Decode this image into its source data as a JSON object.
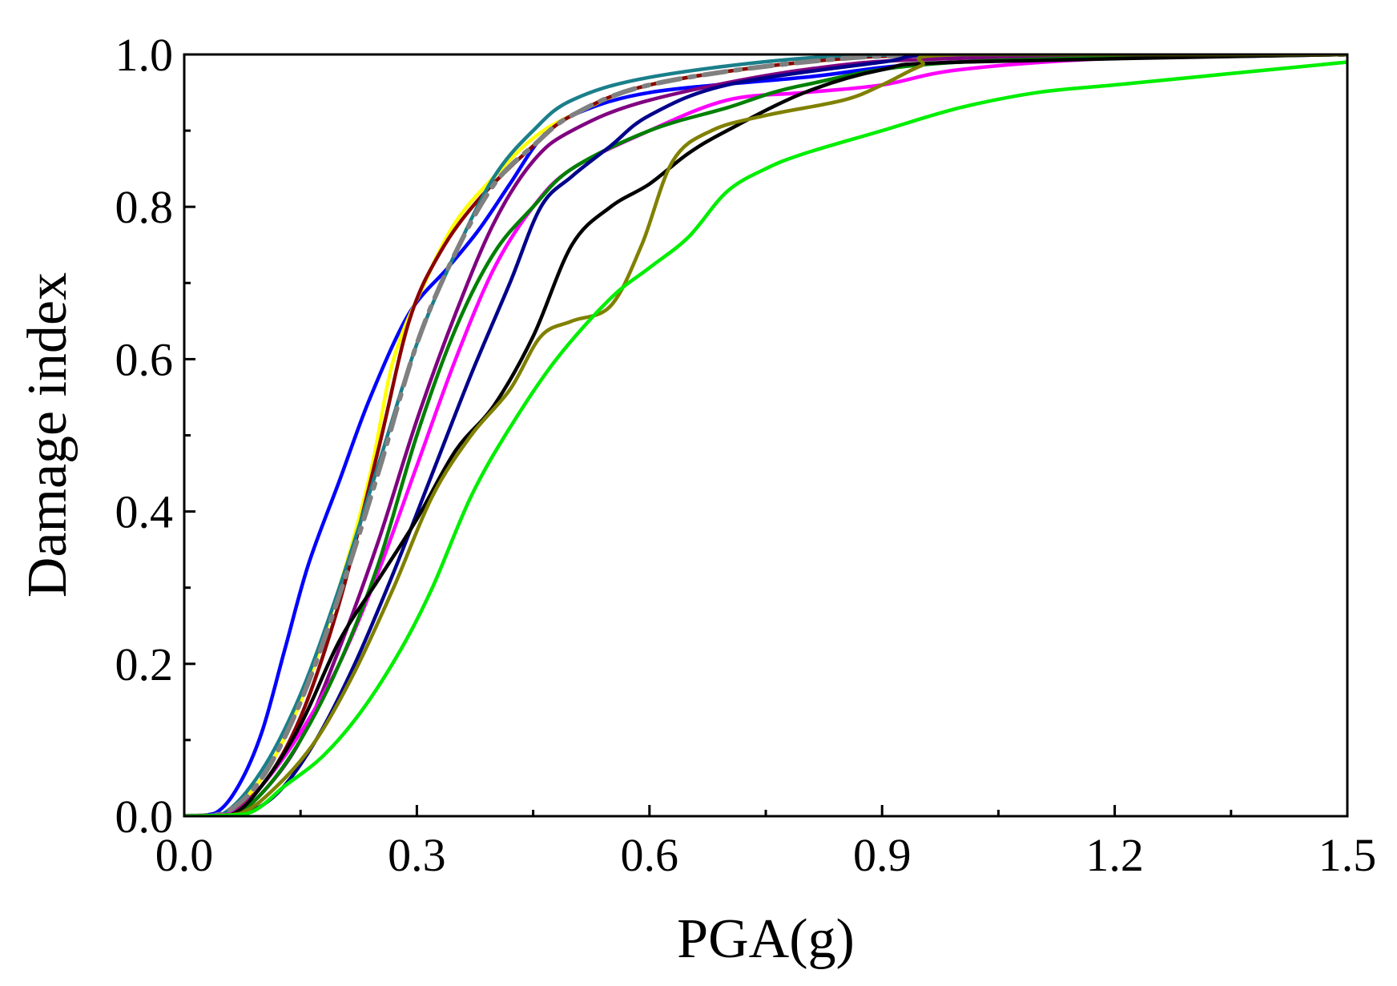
{
  "chart_data": {
    "type": "line",
    "title": "",
    "xlabel": "PGA(g)",
    "ylabel": "Damage index",
    "xlim": [
      0.0,
      1.5
    ],
    "ylim": [
      0.0,
      1.0
    ],
    "xticks": [
      "0.0",
      "0.3",
      "0.6",
      "0.9",
      "1.2",
      "1.5"
    ],
    "yticks": [
      "0.0",
      "0.2",
      "0.4",
      "0.6",
      "0.8",
      "1.0"
    ],
    "grid": false,
    "legend": "none",
    "series": [
      {
        "name": "blue",
        "color": "#0000ff",
        "dash": "",
        "points": [
          [
            0,
            0
          ],
          [
            0.04,
            0.004
          ],
          [
            0.07,
            0.04
          ],
          [
            0.1,
            0.11
          ],
          [
            0.13,
            0.22
          ],
          [
            0.16,
            0.33
          ],
          [
            0.2,
            0.44
          ],
          [
            0.24,
            0.55
          ],
          [
            0.29,
            0.66
          ],
          [
            0.34,
            0.72
          ],
          [
            0.38,
            0.77
          ],
          [
            0.42,
            0.83
          ],
          [
            0.46,
            0.89
          ],
          [
            0.5,
            0.92
          ],
          [
            0.6,
            0.95
          ],
          [
            0.8,
            0.97
          ],
          [
            1.0,
            0.99
          ],
          [
            1.5,
            1.0
          ]
        ]
      },
      {
        "name": "yellow",
        "color": "#ffff00",
        "dash": "",
        "points": [
          [
            0,
            0
          ],
          [
            0.05,
            0.002
          ],
          [
            0.1,
            0.05
          ],
          [
            0.15,
            0.15
          ],
          [
            0.2,
            0.3
          ],
          [
            0.24,
            0.45
          ],
          [
            0.27,
            0.6
          ],
          [
            0.31,
            0.7
          ],
          [
            0.35,
            0.78
          ],
          [
            0.4,
            0.84
          ],
          [
            0.45,
            0.89
          ],
          [
            0.5,
            0.92
          ],
          [
            0.6,
            0.96
          ],
          [
            0.8,
            0.99
          ],
          [
            1.0,
            1.0
          ],
          [
            1.5,
            1.0
          ]
        ]
      },
      {
        "name": "dark-red",
        "color": "#8b0000",
        "dash": "",
        "points": [
          [
            0,
            0
          ],
          [
            0.05,
            0.002
          ],
          [
            0.1,
            0.04
          ],
          [
            0.15,
            0.13
          ],
          [
            0.2,
            0.28
          ],
          [
            0.25,
            0.48
          ],
          [
            0.29,
            0.65
          ],
          [
            0.33,
            0.74
          ],
          [
            0.38,
            0.81
          ],
          [
            0.45,
            0.88
          ],
          [
            0.5,
            0.92
          ],
          [
            0.6,
            0.96
          ],
          [
            0.8,
            0.99
          ],
          [
            1.0,
            1.0
          ],
          [
            1.5,
            1.0
          ]
        ]
      },
      {
        "name": "teal",
        "color": "#1a7f8a",
        "dash": "",
        "points": [
          [
            0,
            0
          ],
          [
            0.05,
            0.003
          ],
          [
            0.1,
            0.06
          ],
          [
            0.15,
            0.16
          ],
          [
            0.2,
            0.3
          ],
          [
            0.25,
            0.46
          ],
          [
            0.3,
            0.62
          ],
          [
            0.35,
            0.74
          ],
          [
            0.4,
            0.84
          ],
          [
            0.45,
            0.9
          ],
          [
            0.5,
            0.94
          ],
          [
            0.6,
            0.97
          ],
          [
            0.8,
            0.995
          ],
          [
            1.0,
            1.0
          ],
          [
            1.5,
            1.0
          ]
        ]
      },
      {
        "name": "gray-dashdot",
        "color": "#808080",
        "dash": "28,12,6,12",
        "points": [
          [
            0,
            0
          ],
          [
            0.05,
            0.003
          ],
          [
            0.1,
            0.05
          ],
          [
            0.15,
            0.15
          ],
          [
            0.2,
            0.29
          ],
          [
            0.25,
            0.45
          ],
          [
            0.3,
            0.62
          ],
          [
            0.35,
            0.74
          ],
          [
            0.4,
            0.83
          ],
          [
            0.45,
            0.88
          ],
          [
            0.5,
            0.92
          ],
          [
            0.6,
            0.96
          ],
          [
            0.8,
            0.99
          ],
          [
            1.0,
            1.0
          ],
          [
            1.5,
            1.0
          ]
        ]
      },
      {
        "name": "purple",
        "color": "#800080",
        "dash": "",
        "points": [
          [
            0,
            0
          ],
          [
            0.06,
            0.002
          ],
          [
            0.1,
            0.03
          ],
          [
            0.15,
            0.1
          ],
          [
            0.2,
            0.22
          ],
          [
            0.25,
            0.36
          ],
          [
            0.3,
            0.52
          ],
          [
            0.35,
            0.66
          ],
          [
            0.4,
            0.78
          ],
          [
            0.45,
            0.86
          ],
          [
            0.5,
            0.9
          ],
          [
            0.6,
            0.94
          ],
          [
            0.8,
            0.98
          ],
          [
            1.0,
            0.995
          ],
          [
            1.5,
            1.0
          ]
        ]
      },
      {
        "name": "magenta",
        "color": "#ff00ff",
        "dash": "",
        "points": [
          [
            0,
            0
          ],
          [
            0.06,
            0.003
          ],
          [
            0.1,
            0.04
          ],
          [
            0.15,
            0.11
          ],
          [
            0.2,
            0.2
          ],
          [
            0.25,
            0.32
          ],
          [
            0.3,
            0.46
          ],
          [
            0.35,
            0.6
          ],
          [
            0.4,
            0.72
          ],
          [
            0.45,
            0.8
          ],
          [
            0.5,
            0.85
          ],
          [
            0.6,
            0.9
          ],
          [
            0.7,
            0.94
          ],
          [
            0.8,
            0.95
          ],
          [
            0.9,
            0.96
          ],
          [
            1.0,
            0.98
          ],
          [
            1.2,
            0.995
          ],
          [
            1.5,
            1.0
          ]
        ]
      },
      {
        "name": "green",
        "color": "#008000",
        "dash": "",
        "points": [
          [
            0,
            0
          ],
          [
            0.06,
            0.002
          ],
          [
            0.1,
            0.03
          ],
          [
            0.15,
            0.1
          ],
          [
            0.2,
            0.2
          ],
          [
            0.25,
            0.33
          ],
          [
            0.3,
            0.5
          ],
          [
            0.35,
            0.64
          ],
          [
            0.4,
            0.74
          ],
          [
            0.45,
            0.8
          ],
          [
            0.5,
            0.85
          ],
          [
            0.6,
            0.9
          ],
          [
            0.7,
            0.93
          ],
          [
            0.8,
            0.96
          ],
          [
            1.0,
            0.99
          ],
          [
            1.5,
            1.0
          ]
        ]
      },
      {
        "name": "navy",
        "color": "#00008b",
        "dash": "",
        "points": [
          [
            0,
            0
          ],
          [
            0.07,
            0.002
          ],
          [
            0.12,
            0.03
          ],
          [
            0.17,
            0.1
          ],
          [
            0.22,
            0.2
          ],
          [
            0.27,
            0.32
          ],
          [
            0.32,
            0.45
          ],
          [
            0.37,
            0.58
          ],
          [
            0.42,
            0.7
          ],
          [
            0.46,
            0.8
          ],
          [
            0.5,
            0.84
          ],
          [
            0.55,
            0.88
          ],
          [
            0.6,
            0.92
          ],
          [
            0.7,
            0.96
          ],
          [
            0.9,
            0.99
          ],
          [
            1.0,
            1.0
          ],
          [
            1.5,
            1.0
          ]
        ]
      },
      {
        "name": "black",
        "color": "#000000",
        "dash": "",
        "points": [
          [
            0,
            0
          ],
          [
            0.06,
            0.002
          ],
          [
            0.1,
            0.04
          ],
          [
            0.15,
            0.12
          ],
          [
            0.2,
            0.23
          ],
          [
            0.25,
            0.31
          ],
          [
            0.3,
            0.39
          ],
          [
            0.35,
            0.48
          ],
          [
            0.4,
            0.54
          ],
          [
            0.45,
            0.63
          ],
          [
            0.5,
            0.75
          ],
          [
            0.55,
            0.8
          ],
          [
            0.6,
            0.83
          ],
          [
            0.65,
            0.87
          ],
          [
            0.7,
            0.9
          ],
          [
            0.8,
            0.95
          ],
          [
            0.9,
            0.98
          ],
          [
            1.0,
            0.99
          ],
          [
            1.5,
            1.0
          ]
        ]
      },
      {
        "name": "olive",
        "color": "#808000",
        "dash": "",
        "points": [
          [
            0,
            0
          ],
          [
            0.07,
            0.003
          ],
          [
            0.12,
            0.04
          ],
          [
            0.17,
            0.1
          ],
          [
            0.22,
            0.19
          ],
          [
            0.27,
            0.3
          ],
          [
            0.32,
            0.42
          ],
          [
            0.37,
            0.5
          ],
          [
            0.42,
            0.56
          ],
          [
            0.46,
            0.63
          ],
          [
            0.5,
            0.65
          ],
          [
            0.55,
            0.67
          ],
          [
            0.59,
            0.75
          ],
          [
            0.63,
            0.86
          ],
          [
            0.68,
            0.9
          ],
          [
            0.75,
            0.92
          ],
          [
            0.85,
            0.94
          ],
          [
            0.9,
            0.96
          ],
          [
            0.95,
            0.985
          ],
          [
            1.0,
            1.0
          ],
          [
            1.5,
            1.0
          ]
        ]
      },
      {
        "name": "lime",
        "color": "#00ee00",
        "dash": "",
        "points": [
          [
            0,
            0
          ],
          [
            0.08,
            0.003
          ],
          [
            0.13,
            0.04
          ],
          [
            0.18,
            0.08
          ],
          [
            0.23,
            0.14
          ],
          [
            0.28,
            0.22
          ],
          [
            0.32,
            0.3
          ],
          [
            0.37,
            0.42
          ],
          [
            0.42,
            0.51
          ],
          [
            0.48,
            0.6
          ],
          [
            0.55,
            0.68
          ],
          [
            0.6,
            0.72
          ],
          [
            0.65,
            0.76
          ],
          [
            0.7,
            0.82
          ],
          [
            0.75,
            0.85
          ],
          [
            0.8,
            0.87
          ],
          [
            0.9,
            0.9
          ],
          [
            1.0,
            0.93
          ],
          [
            1.1,
            0.95
          ],
          [
            1.2,
            0.96
          ],
          [
            1.35,
            0.975
          ],
          [
            1.5,
            0.99
          ]
        ]
      }
    ]
  }
}
